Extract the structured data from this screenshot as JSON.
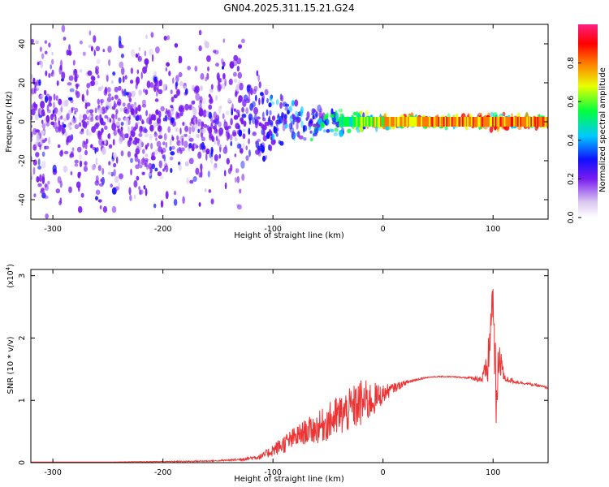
{
  "figure_title": "GN04.2025.311.15.21.G24",
  "chart_data": [
    {
      "type": "heatmap",
      "panel": "spectrogram",
      "xlabel": "Height of straight line (km)",
      "ylabel": "Frequency (Hz)",
      "xlim": [
        -320,
        150
      ],
      "ylim": [
        -50,
        50
      ],
      "xticks": [
        -300,
        -200,
        -100,
        0,
        100
      ],
      "yticks": [
        -40,
        -20,
        0,
        20,
        40
      ],
      "colorbar": {
        "label": "Normalized spectral amplitude",
        "range": [
          0.0,
          1.0
        ],
        "ticks": [
          0.0,
          0.2,
          0.4,
          0.6,
          0.8
        ],
        "colormap": [
          "#d9c8f0",
          "#7a1cf0",
          "#1010ff",
          "#00c8ff",
          "#00ff40",
          "#e8ff00",
          "#ff7a00",
          "#ff0000",
          "#ff2080"
        ]
      },
      "description_points": [
        {
          "x": -300,
          "spread_hz": 50,
          "amplitude": 0.2
        },
        {
          "x": -200,
          "spread_hz": 50,
          "amplitude": 0.2
        },
        {
          "x": -130,
          "spread_hz": 50,
          "amplitude": 0.2
        },
        {
          "x": -100,
          "spread_hz": 15,
          "amplitude": 0.3
        },
        {
          "x": -50,
          "spread_hz": 8,
          "amplitude": 0.45
        },
        {
          "x": 0,
          "spread_hz": 4,
          "amplitude": 0.7
        },
        {
          "x": 50,
          "spread_hz": 3,
          "amplitude": 0.8
        },
        {
          "x": 100,
          "spread_hz": 5,
          "amplitude": 0.8
        },
        {
          "x": 150,
          "spread_hz": 3,
          "amplitude": 0.85
        }
      ]
    },
    {
      "type": "line",
      "panel": "snr",
      "xlabel": "Height of straight line (km)",
      "ylabel": "SNR (10 * v/v)",
      "y_scale_label": "(x10",
      "y_scale_exp": "4",
      "y_scale_close": ")",
      "xlim": [
        -320,
        150
      ],
      "ylim": [
        0,
        3.1
      ],
      "xticks": [
        -300,
        -200,
        -100,
        0,
        100
      ],
      "yticks": [
        0,
        1,
        2,
        3
      ],
      "color": "#ee3333",
      "series": [
        {
          "x": [
            -320,
            -250,
            -180,
            -150,
            -130,
            -110,
            -100,
            -90,
            -80,
            -70,
            -60,
            -50,
            -40,
            -30,
            -20,
            -10,
            0,
            10,
            20,
            30,
            40,
            50,
            60,
            70,
            80,
            90,
            95,
            100,
            103,
            106,
            110,
            120,
            130,
            140,
            150
          ],
          "y": [
            0.01,
            0.01,
            0.02,
            0.03,
            0.05,
            0.1,
            0.2,
            0.3,
            0.4,
            0.5,
            0.55,
            0.65,
            0.75,
            0.85,
            0.95,
            1.0,
            1.1,
            1.2,
            1.28,
            1.33,
            1.37,
            1.38,
            1.38,
            1.37,
            1.36,
            1.34,
            1.5,
            2.7,
            0.8,
            1.8,
            1.35,
            1.3,
            1.27,
            1.24,
            1.2
          ],
          "noise": [
            0.0,
            0.0,
            0.01,
            0.01,
            0.02,
            0.05,
            0.1,
            0.15,
            0.18,
            0.2,
            0.25,
            0.3,
            0.35,
            0.35,
            0.4,
            0.3,
            0.15,
            0.08,
            0.04,
            0.02,
            0.01,
            0.01,
            0.01,
            0.01,
            0.02,
            0.08,
            0.3,
            0.45,
            0.6,
            0.4,
            0.06,
            0.03,
            0.02,
            0.02,
            0.02
          ]
        }
      ]
    }
  ]
}
